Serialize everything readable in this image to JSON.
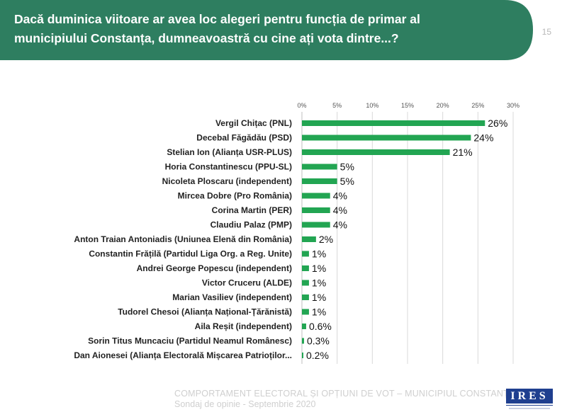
{
  "header": {
    "title": "Dacă duminica viitoare ar avea loc alegeri pentru funcția de primar al municipiului Constanța, dumneavoastră cu cine ați vota dintre...?",
    "page_number": "15",
    "band_color": "#2e7e60"
  },
  "chart_data": {
    "type": "bar",
    "orientation": "horizontal",
    "bar_color": "#22a552",
    "xlim": [
      0,
      30
    ],
    "xticks": [
      "0%",
      "5%",
      "10%",
      "15%",
      "20%",
      "25%",
      "30%"
    ],
    "grid": true,
    "categories": [
      "Vergil Chițac (PNL)",
      "Decebal Făgădău (PSD)",
      "Stelian Ion (Alianța USR-PLUS)",
      "Horia Constantinescu (PPU-SL)",
      "Nicoleta Ploscaru (independent)",
      "Mircea Dobre (Pro România)",
      "Corina Martin (PER)",
      "Claudiu Palaz (PMP)",
      "Anton Traian Antoniadis (Uniunea Elenă din România)",
      "Constantin Frățilă (Partidul Liga Org. a Reg. Unite)",
      "Andrei George Popescu (independent)",
      "Victor Cruceru (ALDE)",
      "Marian Vasiliev (independent)",
      "Tudorel Chesoi (Alianța Național-Țărănistă)",
      "Aila Reșit (independent)",
      "Sorin Titus Muncaciu (Partidul Neamul Românesc)",
      "Dan Aionesei (Alianța Electorală Mișcarea Patrioților..."
    ],
    "values": [
      26,
      24,
      21,
      5,
      5,
      4,
      4,
      4,
      2,
      1,
      1,
      1,
      1,
      1,
      0.6,
      0.3,
      0.2
    ],
    "data_labels": [
      "26%",
      "24%",
      "21%",
      "5%",
      "5%",
      "4%",
      "4%",
      "4%",
      "2%",
      "1%",
      "1%",
      "1%",
      "1%",
      "1%",
      "0.6%",
      "0.3%",
      "0.2%"
    ]
  },
  "footer": {
    "line1": "COMPORTAMENT ELECTORAL ȘI OPȚIUNI DE VOT – MUNICIPIUL CONSTANȚA",
    "line2": "Sondaj de opinie - Septembrie 2020"
  },
  "logo": {
    "text": "IRES",
    "color": "#1f3f8f"
  }
}
